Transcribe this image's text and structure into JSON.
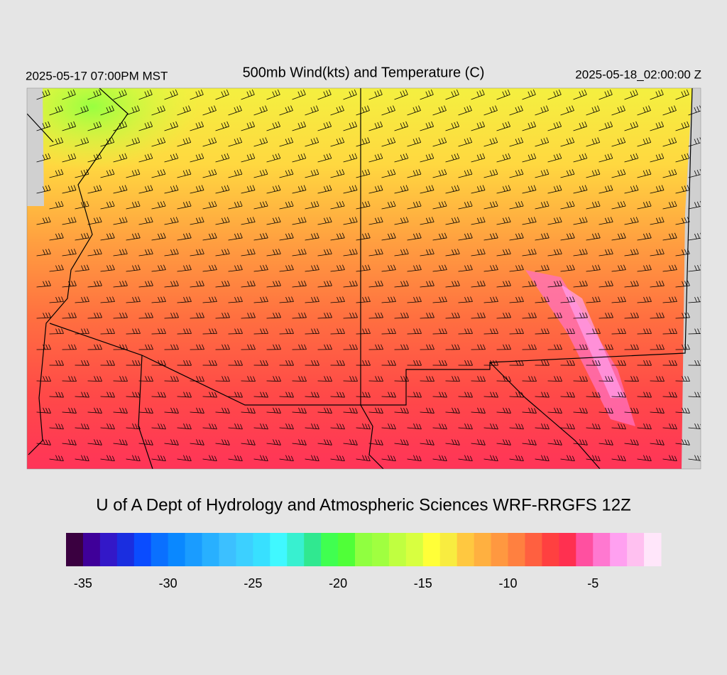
{
  "header": {
    "valid_local": "2025-05-17 07:00PM MST",
    "title": "500mb Wind(kts) and Temperature (C)",
    "valid_utc": "2025-05-18_02:00:00 Z"
  },
  "credit": "U of A Dept of Hydrology and Atmospheric Sciences WRF-RRGFS 12Z",
  "colorbar": {
    "lim": [
      -36,
      -1
    ],
    "ticks": [
      -35,
      -30,
      -25,
      -20,
      -15,
      -10,
      -5
    ],
    "colors": [
      "#3a0040",
      "#3f0099",
      "#3318c8",
      "#1a2ee0",
      "#0a4cff",
      "#0a70ff",
      "#0a88ff",
      "#1a9cff",
      "#28b0ff",
      "#3cc0ff",
      "#3cd0ff",
      "#38e0ff",
      "#40f8ff",
      "#38f0d0",
      "#30e890",
      "#40ff50",
      "#50ff38",
      "#90ff40",
      "#a0ff40",
      "#c0ff40",
      "#d8ff40",
      "#ffff38",
      "#f8ec40",
      "#ffc840",
      "#ffb040",
      "#ff9840",
      "#ff8040",
      "#ff6040",
      "#ff4040",
      "#ff3050",
      "#ff50a0",
      "#ff78d0",
      "#ffa0f0",
      "#ffc0f0",
      "#ffe6fa"
    ]
  }
}
